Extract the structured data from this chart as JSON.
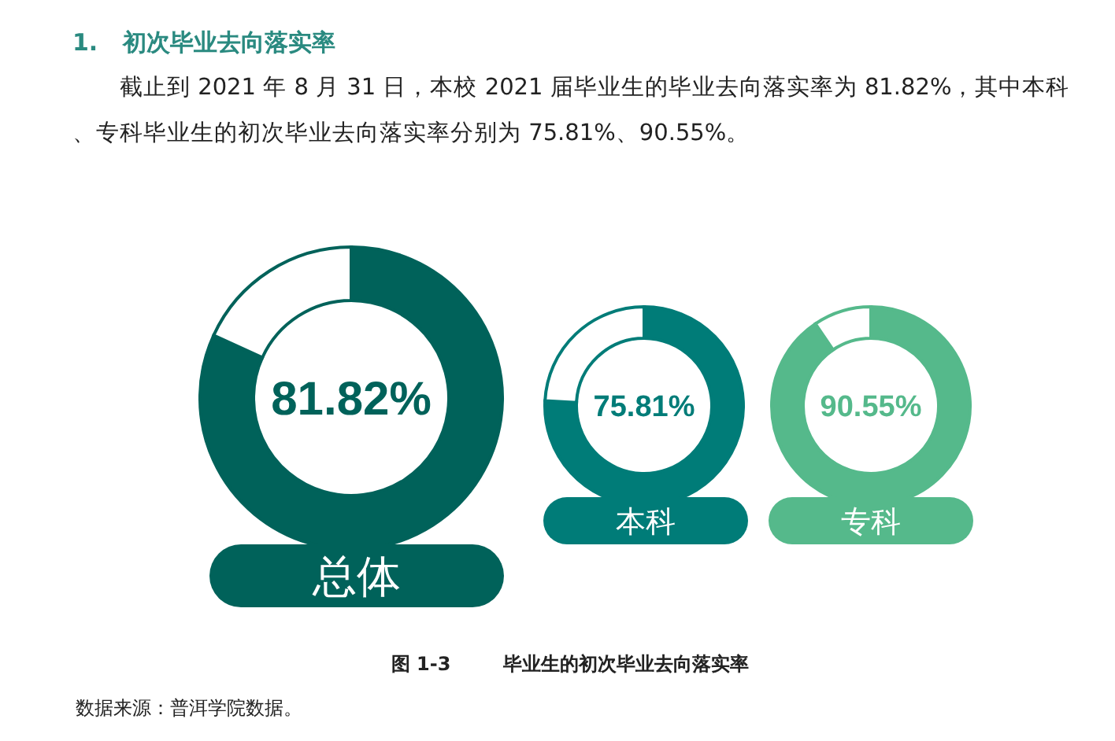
{
  "chart_data": [
    {
      "type": "donut",
      "title": "1.   初次毕业去向落实率",
      "subtitle": "截止到 2021 年 8 月 31 日，本校 2021 届毕业生的毕业去向落实率为 81.82%，其中本科、专科毕业生的初次毕业去向落实率分别为 75.81%、90.55%。",
      "categories": [
        "总体",
        null
      ],
      "values": [
        81.82,
        18.18
      ],
      "colors": [
        "#00625a",
        "#ffffff"
      ],
      "value_labels": [
        "81.82%",
        null
      ],
      "annotations": [
        "图 1-3        毕业生的初次毕业去向落实率",
        "数据来源：普洱学院数据。"
      ]
    },
    {
      "type": "donut",
      "categories": [
        "本科",
        null
      ],
      "values": [
        75.81,
        24.19
      ],
      "colors": [
        "#007c78",
        "#ffffff"
      ],
      "value_labels": [
        "75.81%",
        null
      ]
    },
    {
      "type": "donut",
      "categories": [
        "专科",
        null
      ],
      "values": [
        90.55,
        9.45
      ],
      "colors": [
        "#55b98b",
        "#ffffff"
      ],
      "value_labels": [
        "90.55%",
        null
      ]
    }
  ]
}
